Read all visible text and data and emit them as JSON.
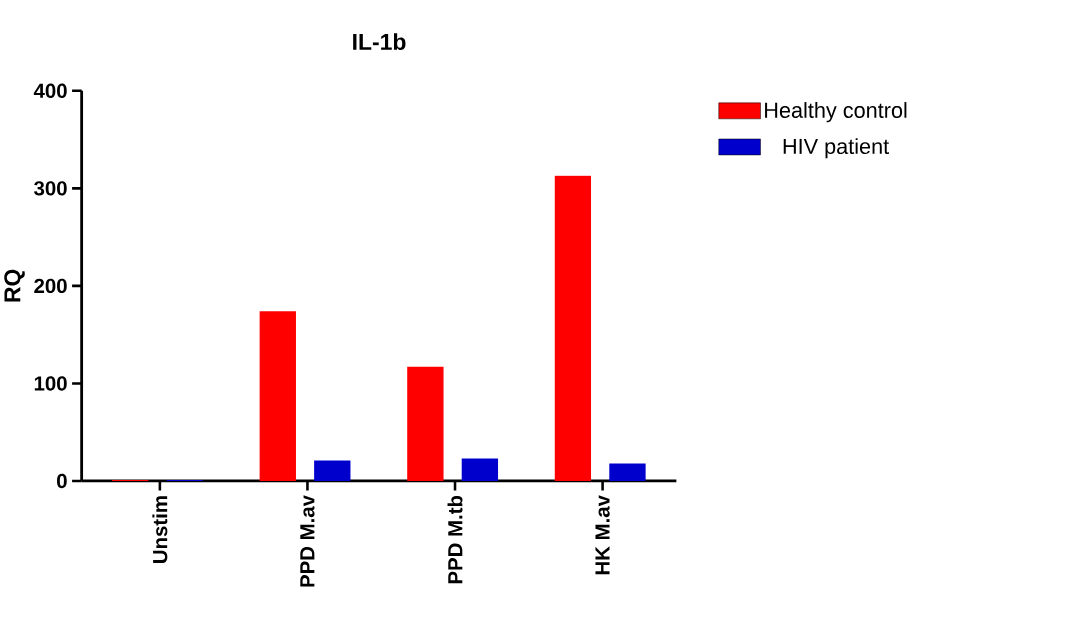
{
  "chart_data": {
    "type": "bar",
    "title": "IL-1b",
    "ylabel": "RQ",
    "categories": [
      "Unstim",
      "PPD M.av",
      "PPD M.tb",
      "HK M.av"
    ],
    "series": [
      {
        "name": "Healthy control",
        "color": "#ff0000",
        "values": [
          1,
          174,
          117,
          313
        ]
      },
      {
        "name": "HIV patient",
        "color": "#0000cc",
        "values": [
          1,
          21,
          23,
          18
        ]
      }
    ],
    "ylim": [
      0,
      400
    ],
    "yticks": [
      0,
      100,
      200,
      300,
      400
    ],
    "grid": false,
    "legend": "top right"
  }
}
